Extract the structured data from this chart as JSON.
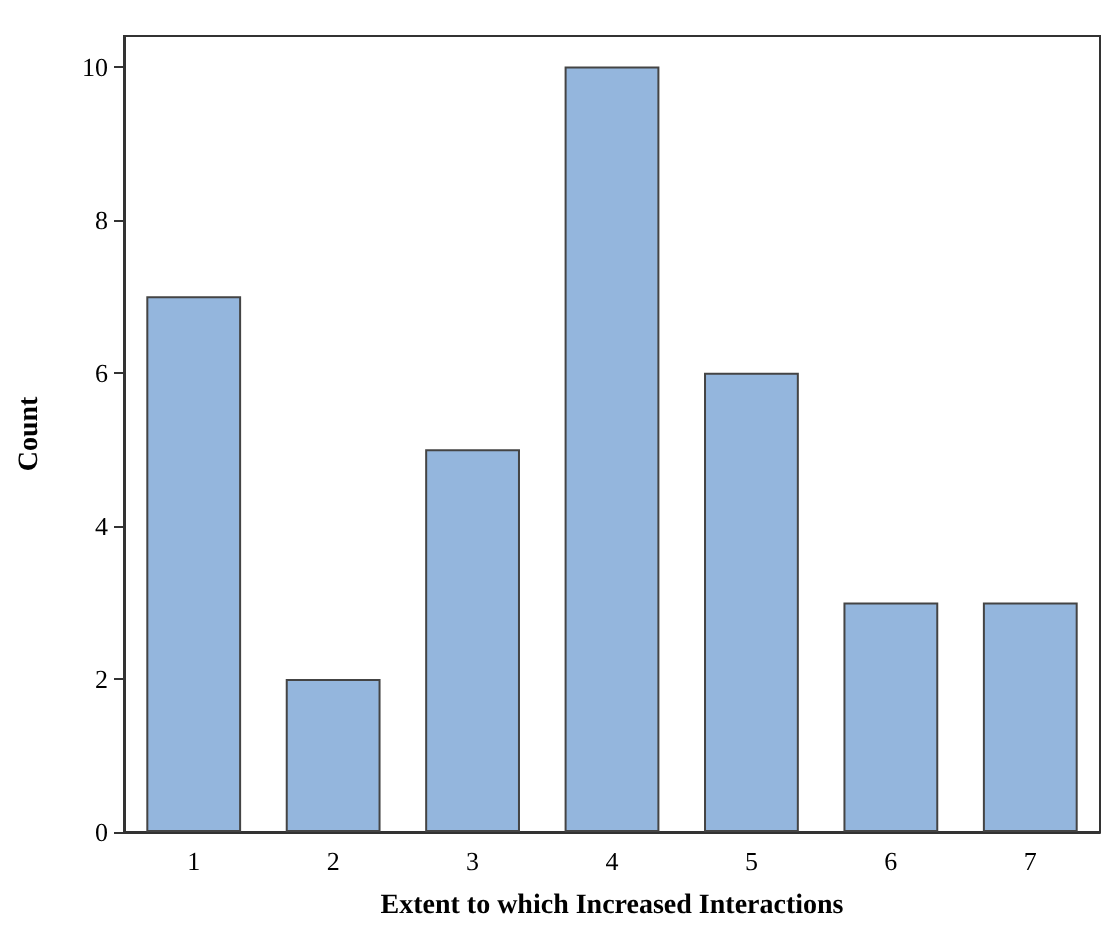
{
  "chart_data": {
    "type": "bar",
    "xlabel": "Extent to which Increased Interactions",
    "ylabel": "Count",
    "categories": [
      "1",
      "2",
      "3",
      "4",
      "5",
      "6",
      "7"
    ],
    "values": [
      7,
      2,
      5,
      10,
      6,
      3,
      3
    ],
    "color": "#94b6dd",
    "ylim": [
      0,
      10.4
    ],
    "yticks": [
      0,
      2,
      4,
      6,
      8,
      10
    ],
    "grid": false
  }
}
